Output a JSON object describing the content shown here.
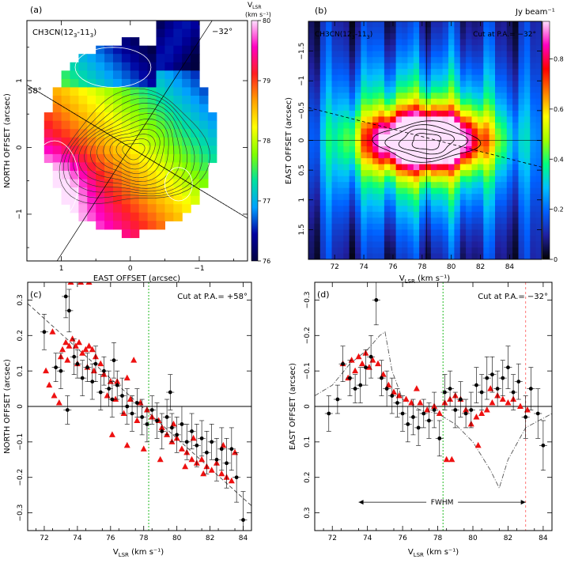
{
  "panels": {
    "a": {
      "tag": "(a)",
      "line_label": "CH3CN(12",
      "line_label_sub1": "3",
      "line_label_dash": "-11",
      "line_label_sub2": "3",
      "line_label_close": ")",
      "pa_label_1": "58°",
      "pa_label_2": "−32°",
      "xlabel": "EAST OFFSET (arcsec)",
      "ylabel": "NORTH OFFSET (arcsec)",
      "colorbar_title": "V",
      "colorbar_title_sub": "LSR",
      "colorbar_units": "(km s⁻¹)",
      "colorbar_ticks": [
        "80",
        "79",
        "78",
        "77",
        "76"
      ]
    },
    "b": {
      "tag": "(b)",
      "line_label": "CH3CN(12",
      "line_label_sub1": "3",
      "line_label_dash": "-11",
      "line_label_sub2": "3",
      "line_label_close": ")",
      "cut_label": "Cut at P.A.= −32°",
      "colorbar_title": "Jy beam⁻¹",
      "colorbar_ticks": [
        "0.8",
        "0.6",
        "0.4",
        "0.2",
        "0"
      ],
      "xlabel_main": "V",
      "xlabel_sub": "LSR",
      "xlabel_units": " (km s⁻¹)",
      "ylabel": "EAST OFFSET (arcsec)"
    },
    "c": {
      "tag": "(c)",
      "cut_label": "Cut at P.A.= +58°",
      "ylabel": "NORTH OFFSET (arcsec)",
      "xlabel_main": "V",
      "xlabel_sub": "LSR",
      "xlabel_units": " (km s⁻¹)"
    },
    "d": {
      "tag": "(d)",
      "cut_label": "Cut at P.A.= −32°",
      "fwhm_label": "FWHM",
      "ylabel": "EAST OFFSET (arcsec)",
      "xlabel_main": "V",
      "xlabel_sub": "LSR",
      "xlabel_units": " (km s⁻¹)"
    }
  },
  "chart_data": [
    {
      "panel": "a",
      "type": "heatmap",
      "x_ticks": [
        "1",
        "0",
        "−1"
      ],
      "y_ticks": [
        "1",
        "0",
        "−1"
      ],
      "xlim": [
        1.5,
        -1.7
      ],
      "ylim": [
        -1.7,
        1.9
      ],
      "colorbar": {
        "min": 76,
        "max": 80,
        "colors": [
          "#000040",
          "#0000a0",
          "#00a0ff",
          "#00e0a0",
          "#80ff00",
          "#ffff00",
          "#ffa000",
          "#ff2020",
          "#ff00c0",
          "#ffe0ff"
        ]
      }
    },
    {
      "panel": "b",
      "type": "heatmap",
      "x_ticks": [
        "72",
        "74",
        "76",
        "78",
        "80",
        "82",
        "84"
      ],
      "y_ticks": [
        "−1.5",
        "−1",
        "−0.5",
        "0",
        "0.5",
        "1",
        "1.5"
      ],
      "xlim": [
        70.2,
        86.2
      ],
      "ylim": [
        -2.0,
        2.0
      ],
      "colorbar": {
        "min": 0,
        "max": 0.95,
        "colors": [
          "#000000",
          "#2020a0",
          "#0060ff",
          "#00c0ff",
          "#00ff80",
          "#a0ff00",
          "#ffff00",
          "#ff8000",
          "#ff0000",
          "#ff00c0",
          "#ffe0ff"
        ]
      }
    },
    {
      "panel": "c",
      "type": "scatter",
      "x_ticks": [
        "72",
        "74",
        "76",
        "78",
        "80",
        "82",
        "84"
      ],
      "y_ticks": [
        "0.3",
        "0.2",
        "0.1",
        "0",
        "−0.1",
        "−0.2",
        "−0.3"
      ],
      "xlim": [
        71,
        84.5
      ],
      "ylim": [
        -0.35,
        0.35
      ],
      "y_inverted": true,
      "vline": 78.3,
      "fit_line": [
        [
          71,
          0.29
        ],
        [
          84.5,
          -0.28
        ]
      ],
      "red_triangles": [
        [
          73.6,
          0.35
        ],
        [
          74.2,
          0.35
        ],
        [
          74.7,
          0.35
        ],
        [
          72.5,
          0.21
        ],
        [
          73.1,
          0.16
        ],
        [
          73.3,
          0.18
        ],
        [
          73.5,
          0.17
        ],
        [
          73.7,
          0.19
        ],
        [
          73.9,
          0.17
        ],
        [
          74.1,
          0.18
        ],
        [
          74.3,
          0.15
        ],
        [
          74.5,
          0.16
        ],
        [
          74.7,
          0.17
        ],
        [
          74.9,
          0.16
        ],
        [
          75.1,
          0.14
        ],
        [
          75.4,
          0.12
        ],
        [
          73.0,
          0.14
        ],
        [
          73.4,
          0.13
        ],
        [
          74.0,
          0.12
        ],
        [
          74.6,
          0.11
        ],
        [
          75.0,
          0.1
        ],
        [
          75.6,
          0.09
        ],
        [
          76.0,
          0.07
        ],
        [
          76.4,
          0.07
        ],
        [
          77.0,
          0.08
        ],
        [
          77.4,
          0.13
        ],
        [
          72.1,
          0.1
        ],
        [
          72.3,
          0.06
        ],
        [
          72.6,
          0.03
        ],
        [
          72.9,
          0.01
        ],
        [
          75.8,
          0.03
        ],
        [
          76.3,
          0.02
        ],
        [
          77.2,
          0.02
        ],
        [
          77.8,
          0.01
        ],
        [
          78.2,
          -0.01
        ],
        [
          78.5,
          -0.03
        ],
        [
          78.9,
          -0.04
        ],
        [
          79.1,
          -0.06
        ],
        [
          79.4,
          -0.08
        ],
        [
          79.7,
          -0.1
        ],
        [
          80.0,
          -0.09
        ],
        [
          80.3,
          -0.12
        ],
        [
          80.6,
          -0.13
        ],
        [
          80.9,
          -0.15
        ],
        [
          81.2,
          -0.16
        ],
        [
          81.5,
          -0.15
        ],
        [
          81.8,
          -0.17
        ],
        [
          82.1,
          -0.18
        ],
        [
          82.4,
          -0.16
        ],
        [
          82.7,
          -0.19
        ],
        [
          83.0,
          -0.2
        ],
        [
          83.3,
          -0.21
        ],
        [
          76.1,
          -0.08
        ],
        [
          77.0,
          -0.11
        ],
        [
          78.0,
          -0.12
        ],
        [
          79.0,
          -0.15
        ],
        [
          80.5,
          -0.17
        ],
        [
          81.6,
          -0.19
        ],
        [
          83.5,
          -0.13
        ],
        [
          82.8,
          -0.11
        ],
        [
          81.0,
          -0.09
        ],
        [
          79.8,
          -0.05
        ],
        [
          77.6,
          -0.04
        ],
        [
          76.8,
          -0.02
        ]
      ],
      "black_points": [
        [
          72.0,
          0.21,
          0.05
        ],
        [
          72.7,
          0.11,
          0.04
        ],
        [
          73.0,
          0.1,
          0.05
        ],
        [
          73.3,
          0.31,
          0.06
        ],
        [
          73.5,
          0.27,
          0.06
        ],
        [
          73.8,
          0.14,
          0.05
        ],
        [
          74.0,
          0.12,
          0.04
        ],
        [
          74.3,
          0.08,
          0.05
        ],
        [
          74.6,
          0.11,
          0.04
        ],
        [
          74.9,
          0.07,
          0.05
        ],
        [
          75.1,
          0.12,
          0.05
        ],
        [
          75.4,
          0.04,
          0.05
        ],
        [
          75.6,
          0.1,
          0.04
        ],
        [
          75.9,
          0.05,
          0.05
        ],
        [
          76.1,
          0.02,
          0.05
        ],
        [
          76.4,
          0.06,
          0.04
        ],
        [
          76.7,
          0.03,
          0.05
        ],
        [
          77.0,
          0.0,
          0.05
        ],
        [
          77.3,
          -0.02,
          0.05
        ],
        [
          77.6,
          0.01,
          0.04
        ],
        [
          77.9,
          -0.03,
          0.05
        ],
        [
          78.2,
          -0.05,
          0.05
        ],
        [
          78.5,
          -0.01,
          0.04
        ],
        [
          78.8,
          -0.04,
          0.05
        ],
        [
          79.1,
          -0.07,
          0.05
        ],
        [
          79.4,
          -0.03,
          0.05
        ],
        [
          79.7,
          -0.06,
          0.04
        ],
        [
          80.0,
          -0.08,
          0.05
        ],
        [
          80.3,
          -0.05,
          0.05
        ],
        [
          80.6,
          -0.1,
          0.05
        ],
        [
          80.9,
          -0.07,
          0.05
        ],
        [
          81.2,
          -0.11,
          0.06
        ],
        [
          81.5,
          -0.09,
          0.05
        ],
        [
          81.8,
          -0.13,
          0.06
        ],
        [
          82.1,
          -0.1,
          0.05
        ],
        [
          82.4,
          -0.15,
          0.06
        ],
        [
          82.7,
          -0.12,
          0.06
        ],
        [
          83.0,
          -0.16,
          0.07
        ],
        [
          83.3,
          -0.12,
          0.06
        ],
        [
          83.6,
          -0.2,
          0.07
        ],
        [
          84.0,
          -0.32,
          0.08
        ],
        [
          73.4,
          -0.01,
          0.04
        ],
        [
          76.2,
          0.13,
          0.05
        ],
        [
          79.6,
          0.04,
          0.05
        ]
      ]
    },
    {
      "panel": "d",
      "type": "scatter",
      "x_ticks": [
        "72",
        "74",
        "76",
        "78",
        "80",
        "82",
        "84"
      ],
      "y_ticks": [
        "−0.3",
        "−0.2",
        "−0.1",
        "0",
        "0.1",
        "0.2",
        "0.3"
      ],
      "xlim": [
        71,
        84.5
      ],
      "ylim": [
        -0.35,
        0.35
      ],
      "vline": 78.3,
      "vline2": 83.0,
      "fwhm_range": [
        73.5,
        83.0
      ],
      "model_curve": [
        [
          71.0,
          -0.03
        ],
        [
          72.0,
          -0.06
        ],
        [
          73.0,
          -0.12
        ],
        [
          74.0,
          -0.16
        ],
        [
          74.7,
          -0.2
        ],
        [
          75.0,
          -0.21
        ],
        [
          75.4,
          -0.1
        ],
        [
          76.0,
          -0.02
        ],
        [
          77.0,
          0.01
        ],
        [
          78.0,
          0.02
        ],
        [
          79.0,
          0.05
        ],
        [
          80.0,
          0.1
        ],
        [
          81.0,
          0.18
        ],
        [
          81.5,
          0.23
        ],
        [
          82.0,
          0.15
        ],
        [
          83.0,
          0.06
        ],
        [
          84.5,
          0.02
        ]
      ],
      "red_triangles": [
        [
          72.6,
          -0.12
        ],
        [
          72.9,
          -0.08
        ],
        [
          73.1,
          -0.13
        ],
        [
          73.3,
          -0.1
        ],
        [
          73.5,
          -0.14
        ],
        [
          73.7,
          -0.12
        ],
        [
          73.9,
          -0.15
        ],
        [
          74.1,
          -0.11
        ],
        [
          74.3,
          -0.13
        ],
        [
          74.6,
          -0.12
        ],
        [
          74.9,
          -0.09
        ],
        [
          75.2,
          -0.06
        ],
        [
          75.5,
          -0.04
        ],
        [
          75.8,
          -0.03
        ],
        [
          76.2,
          -0.02
        ],
        [
          76.5,
          -0.01
        ],
        [
          77.0,
          -0.01
        ],
        [
          77.4,
          0.01
        ],
        [
          77.8,
          0.0
        ],
        [
          78.1,
          0.02
        ],
        [
          78.4,
          -0.01
        ],
        [
          78.7,
          -0.02
        ],
        [
          79.0,
          -0.03
        ],
        [
          79.3,
          -0.02
        ],
        [
          79.6,
          0.01
        ],
        [
          79.9,
          0.05
        ],
        [
          80.2,
          0.03
        ],
        [
          80.5,
          0.02
        ],
        [
          80.8,
          0.01
        ],
        [
          81.1,
          -0.01
        ],
        [
          81.4,
          -0.03
        ],
        [
          81.7,
          -0.02
        ],
        [
          82.0,
          -0.01
        ],
        [
          82.3,
          -0.02
        ],
        [
          82.7,
          0.0
        ],
        [
          83.1,
          0.01
        ],
        [
          78.5,
          0.15
        ],
        [
          78.8,
          0.15
        ],
        [
          80.3,
          0.11
        ],
        [
          81.0,
          -0.05
        ],
        [
          76.8,
          -0.05
        ]
      ],
      "black_points": [
        [
          71.8,
          0.02,
          0.05
        ],
        [
          72.3,
          -0.02,
          0.04
        ],
        [
          72.6,
          -0.12,
          0.05
        ],
        [
          73.0,
          -0.08,
          0.05
        ],
        [
          73.3,
          -0.05,
          0.04
        ],
        [
          73.6,
          -0.06,
          0.05
        ],
        [
          73.9,
          -0.11,
          0.05
        ],
        [
          74.2,
          -0.14,
          0.06
        ],
        [
          74.5,
          -0.3,
          0.07
        ],
        [
          74.8,
          -0.08,
          0.05
        ],
        [
          75.1,
          -0.05,
          0.05
        ],
        [
          75.4,
          -0.03,
          0.05
        ],
        [
          75.7,
          -0.01,
          0.04
        ],
        [
          76.0,
          0.02,
          0.05
        ],
        [
          76.3,
          0.05,
          0.05
        ],
        [
          76.6,
          0.03,
          0.05
        ],
        [
          76.9,
          0.06,
          0.05
        ],
        [
          77.2,
          0.02,
          0.04
        ],
        [
          77.5,
          0.04,
          0.05
        ],
        [
          77.8,
          0.01,
          0.05
        ],
        [
          78.1,
          0.09,
          0.05
        ],
        [
          78.4,
          -0.04,
          0.05
        ],
        [
          78.7,
          -0.05,
          0.05
        ],
        [
          79.0,
          0.01,
          0.05
        ],
        [
          79.3,
          -0.02,
          0.05
        ],
        [
          79.6,
          0.02,
          0.04
        ],
        [
          79.9,
          0.01,
          0.05
        ],
        [
          80.2,
          -0.06,
          0.05
        ],
        [
          80.5,
          -0.04,
          0.05
        ],
        [
          80.8,
          -0.08,
          0.06
        ],
        [
          81.1,
          -0.09,
          0.05
        ],
        [
          81.4,
          -0.05,
          0.05
        ],
        [
          81.7,
          -0.08,
          0.05
        ],
        [
          82.0,
          -0.11,
          0.06
        ],
        [
          82.3,
          -0.04,
          0.05
        ],
        [
          82.6,
          -0.07,
          0.05
        ],
        [
          83.0,
          0.03,
          0.06
        ],
        [
          83.3,
          -0.05,
          0.06
        ],
        [
          83.7,
          0.02,
          0.07
        ],
        [
          84.0,
          0.11,
          0.07
        ]
      ]
    }
  ]
}
